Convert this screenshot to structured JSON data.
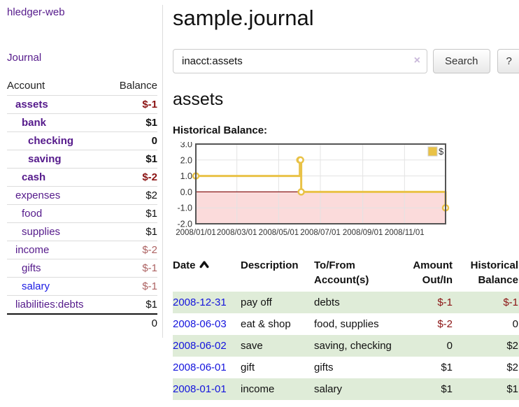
{
  "sidebar": {
    "brand": "hledger-web",
    "journal_link": "Journal",
    "accounts_table": {
      "account_header": "Account",
      "balance_header": "Balance",
      "rows": [
        {
          "name": "assets",
          "balance": "$-1"
        },
        {
          "name": "bank",
          "balance": "$1"
        },
        {
          "name": "checking",
          "balance": "0"
        },
        {
          "name": "saving",
          "balance": "$1"
        },
        {
          "name": "cash",
          "balance": "$-2"
        },
        {
          "name": "expenses",
          "balance": "$2"
        },
        {
          "name": "food",
          "balance": "$1"
        },
        {
          "name": "supplies",
          "balance": "$1"
        },
        {
          "name": "income",
          "balance": "$-2"
        },
        {
          "name": "gifts",
          "balance": "$-1"
        },
        {
          "name": "salary",
          "balance": "$-1"
        },
        {
          "name": "liabilities:debts",
          "balance": "$1"
        }
      ],
      "total": "0"
    }
  },
  "main": {
    "title": "sample.journal",
    "search": {
      "value": "inacct:assets",
      "clear_icon": "×",
      "button_label": "Search",
      "help_label": "?"
    },
    "account_heading": "assets",
    "chart_label": "Historical Balance:"
  },
  "chart_data": {
    "type": "line",
    "step": true,
    "title": "Historical Balance",
    "legend_position": "top-right",
    "grid": true,
    "ylim": [
      -2,
      3
    ],
    "yticks": [
      "3.0",
      "2.0",
      "1.0",
      "0.0",
      "-1.0",
      "-2.0"
    ],
    "xticks": [
      "2008/01/01",
      "2008/03/01",
      "2008/05/01",
      "2008/07/01",
      "2008/09/01",
      "2008/11/01"
    ],
    "zero_line_color": "#8b1a1a",
    "negative_region_color": "#fbdbdb",
    "grid_color": "#e3e3e3",
    "plot_border_color": "#545454",
    "series": [
      {
        "name": "$",
        "color": "#e9c247",
        "points": [
          {
            "x": "2008-01-01",
            "y": 1
          },
          {
            "x": "2008-06-01",
            "y": 2
          },
          {
            "x": "2008-06-02",
            "y": 2
          },
          {
            "x": "2008-06-03",
            "y": 0
          },
          {
            "x": "2008-12-31",
            "y": -1
          }
        ]
      }
    ]
  },
  "register_table": {
    "headers": {
      "date": "Date",
      "description": "Description",
      "accounts": "To/From Account(s)",
      "amount": "Amount Out/In",
      "balance": "Historical Balance"
    },
    "rows": [
      {
        "date": "2008-12-31",
        "description": "pay off",
        "accounts": "debts",
        "amount": "$-1",
        "balance": "$-1"
      },
      {
        "date": "2008-06-03",
        "description": "eat & shop",
        "accounts": "food, supplies",
        "amount": "$-2",
        "balance": "0"
      },
      {
        "date": "2008-06-02",
        "description": "save",
        "accounts": "saving, checking",
        "amount": "0",
        "balance": "$2"
      },
      {
        "date": "2008-06-01",
        "description": "gift",
        "accounts": "gifts",
        "amount": "$1",
        "balance": "$2"
      },
      {
        "date": "2008-01-01",
        "description": "income",
        "accounts": "salary",
        "amount": "$1",
        "balance": "$1"
      }
    ]
  }
}
